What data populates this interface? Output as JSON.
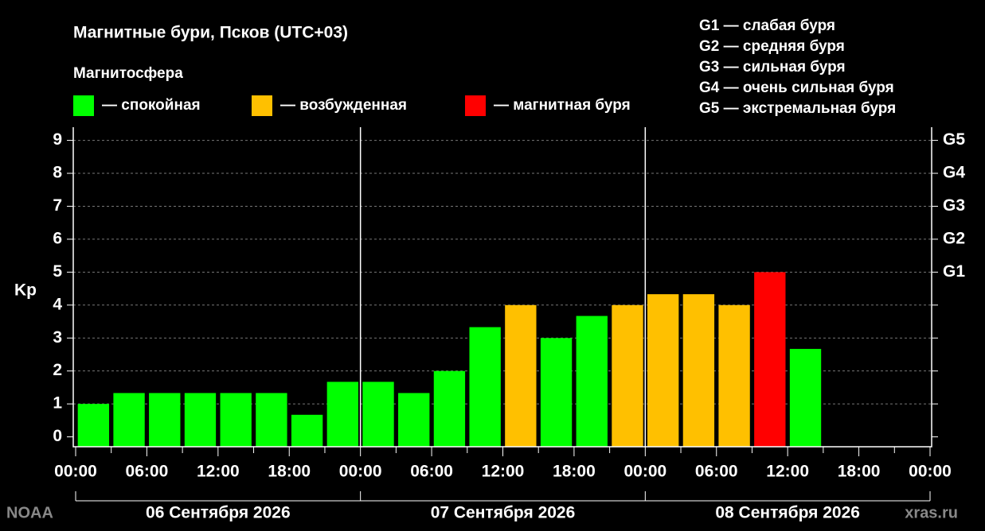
{
  "chart_data": {
    "type": "bar",
    "title": "Магнитные бури, Псков (UTC+03)",
    "legend_title": "Магнитосфера",
    "legend": [
      {
        "label": "— спокойная",
        "color": "#00ff00"
      },
      {
        "label": "— возбужденная",
        "color": "#ffc000"
      },
      {
        "label": "— магнитная буря",
        "color": "#ff0000"
      }
    ],
    "storm_scale": [
      "G1 — слабая буря",
      "G2 — средняя буря",
      "G3 — сильная буря",
      "G4 — очень сильная буря",
      "G5 — экстремальная буря"
    ],
    "ylabel": "Kp",
    "x": [
      1.5,
      4.5,
      7.5,
      10.5,
      13.5,
      16.5,
      19.5,
      22.5,
      25.5,
      28.5,
      31.5,
      34.5,
      37.5,
      40.5,
      43.5,
      46.5,
      49.5,
      52.5,
      55.5,
      58.5,
      61.5
    ],
    "series": [
      {
        "values": [
          1.0,
          1.33,
          1.33,
          1.33,
          1.33,
          1.33,
          0.67,
          1.67,
          1.67,
          1.33,
          2.0,
          3.33,
          4.0,
          3.0,
          3.67,
          4.0,
          4.33,
          4.33,
          4.0,
          5.0,
          2.67
        ],
        "colors": [
          "#00ff00",
          "#00ff00",
          "#00ff00",
          "#00ff00",
          "#00ff00",
          "#00ff00",
          "#00ff00",
          "#00ff00",
          "#00ff00",
          "#00ff00",
          "#00ff00",
          "#00ff00",
          "#ffc000",
          "#00ff00",
          "#00ff00",
          "#ffc000",
          "#ffc000",
          "#ffc000",
          "#ffc000",
          "#ff0000",
          "#00ff00"
        ]
      }
    ],
    "xlim": [
      0,
      72
    ],
    "xticks": [
      {
        "value": 0,
        "label": "00:00"
      },
      {
        "value": 6,
        "label": "06:00"
      },
      {
        "value": 12,
        "label": "12:00"
      },
      {
        "value": 18,
        "label": "18:00"
      },
      {
        "value": 24,
        "label": "00:00"
      },
      {
        "value": 30,
        "label": "06:00"
      },
      {
        "value": 36,
        "label": "12:00"
      },
      {
        "value": 42,
        "label": "18:00"
      },
      {
        "value": 48,
        "label": "00:00"
      },
      {
        "value": 54,
        "label": "06:00"
      },
      {
        "value": 60,
        "label": "12:00"
      },
      {
        "value": 66,
        "label": "18:00"
      },
      {
        "value": 72,
        "label": "00:00"
      }
    ],
    "xminorticks": [
      3,
      9,
      15,
      21,
      27,
      33,
      39,
      45,
      51,
      57,
      63,
      69
    ],
    "day_separators": [
      24,
      48
    ],
    "day_labels": [
      "06 Сентября 2026",
      "07 Сентября 2026",
      "08 Сентября 2026"
    ],
    "ylim": [
      -0.3,
      9.4
    ],
    "yticks": [
      0,
      1,
      2,
      3,
      4,
      5,
      6,
      7,
      8,
      9
    ],
    "y2ticks": [
      {
        "value": 5,
        "label": "G1"
      },
      {
        "value": 6,
        "label": "G2"
      },
      {
        "value": 7,
        "label": "G3"
      },
      {
        "value": 8,
        "label": "G4"
      },
      {
        "value": 9,
        "label": "G5"
      }
    ],
    "y2minorticks": [
      0,
      1,
      2,
      3,
      4
    ],
    "grid": true,
    "source_left": "NOAA",
    "source_right": "xras.ru"
  }
}
